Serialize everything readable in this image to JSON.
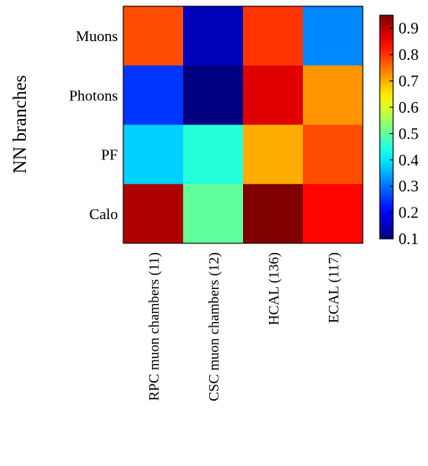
{
  "chart_data": {
    "type": "heatmap",
    "title": "",
    "ylabel": "NN branches",
    "xlabel": "",
    "rows": [
      "Muons",
      "Photons",
      "PF",
      "Calo"
    ],
    "columns": [
      "RPC muon chambers  (11)",
      "CSC muon chambers  (12)",
      "HCAL (136)",
      "ECAL (117)"
    ],
    "values": [
      [
        0.78,
        0.15,
        0.8,
        0.32
      ],
      [
        0.25,
        0.08,
        0.87,
        0.72
      ],
      [
        0.38,
        0.45,
        0.7,
        0.78
      ],
      [
        0.91,
        0.5,
        0.96,
        0.84
      ]
    ],
    "colorbar": {
      "range": [
        0.1,
        0.95
      ],
      "ticks": [
        "0.1",
        "0.2",
        "0.3",
        "0.4",
        "0.5",
        "0.6",
        "0.7",
        "0.8",
        "0.9"
      ],
      "colormap": "jet"
    }
  }
}
